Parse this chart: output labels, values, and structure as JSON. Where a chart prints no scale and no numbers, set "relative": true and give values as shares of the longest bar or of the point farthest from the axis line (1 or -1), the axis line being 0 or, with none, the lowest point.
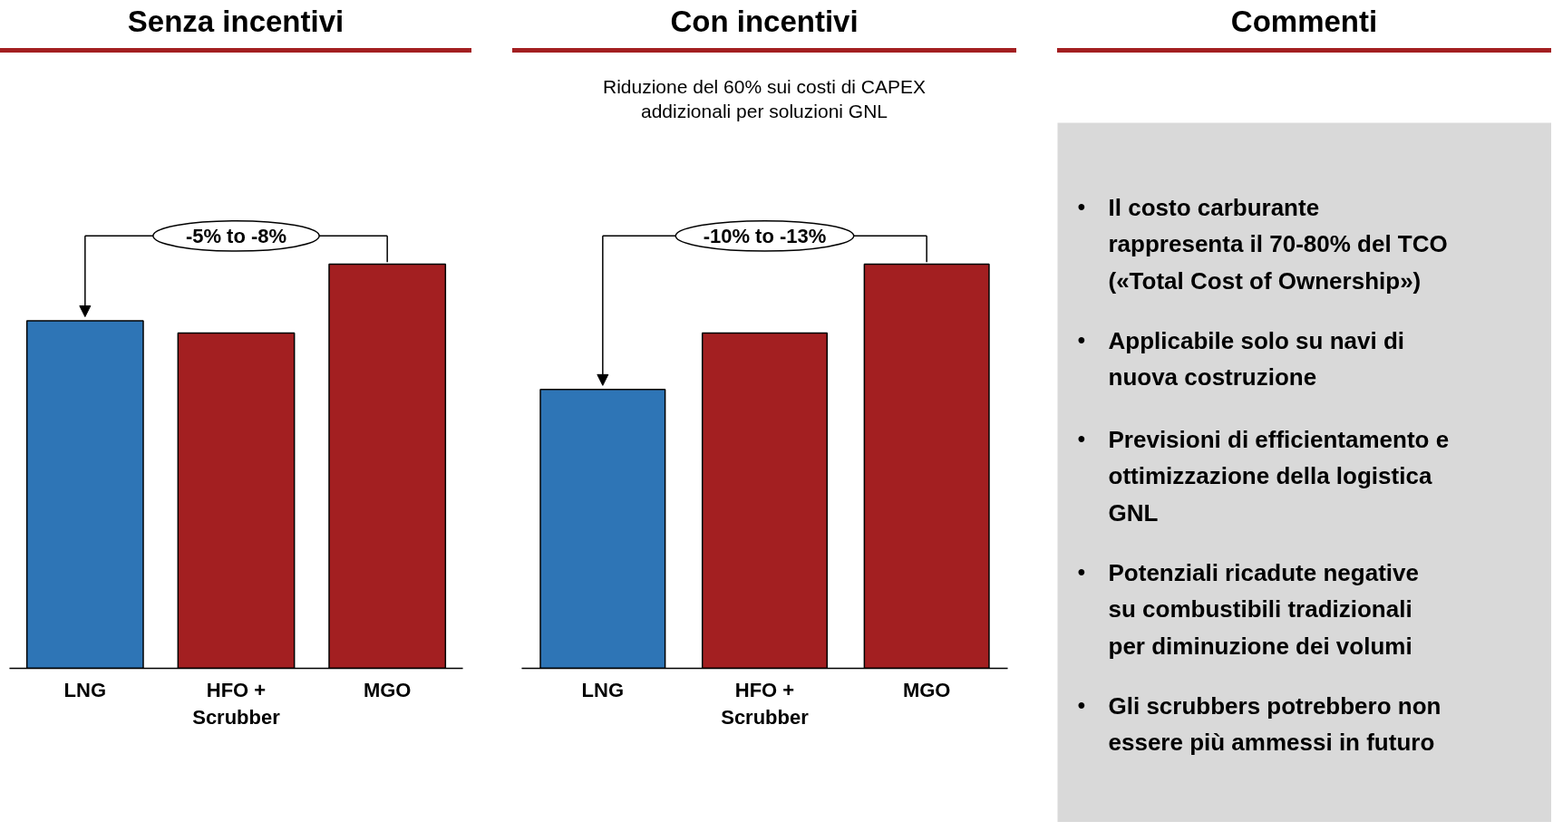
{
  "chart_data": [
    {
      "type": "bar",
      "title": "Senza incentivi",
      "categories": [
        "LNG",
        "HFO +\nScrubber",
        "MGO"
      ],
      "values": [
        0.86,
        0.83,
        1
      ],
      "colors": [
        "#2e75b6",
        "#a31f21",
        "#a31f21"
      ],
      "relative": true,
      "tick_labels": "x",
      "annotations": [
        "-5% to -8%"
      ]
    },
    {
      "type": "bar",
      "title": "Con incentivi",
      "subtitle": "Riduzione del 60% sui costi di CAPEX\naddizionali per soluzioni GNL",
      "categories": [
        "LNG",
        "HFO +\nScrubber",
        "MGO"
      ],
      "values": [
        0.69,
        0.83,
        1
      ],
      "colors": [
        "#2e75b6",
        "#a31f21",
        "#a31f21"
      ],
      "relative": true,
      "tick_labels": "x",
      "annotations": [
        "-10% to -13%"
      ]
    },
    {
      "type": "other",
      "title": "Commenti",
      "annotations": [
        "• Il costo carburante\nrappresenta il 70-80% del TCO\n(«Total Cost of Ownership»)",
        "• Applicabile solo su navi di\nnuova costruzione",
        "• Previsioni di efficientamento e\nottimizzazione della logistica\nGNL",
        "• Potenziali ricadute negative\nsu combustibili tradizionali\nper diminuzione dei volumi",
        "• Gli scrubbers potrebbero non\nessere più ammessi in futuro"
      ]
    }
  ]
}
